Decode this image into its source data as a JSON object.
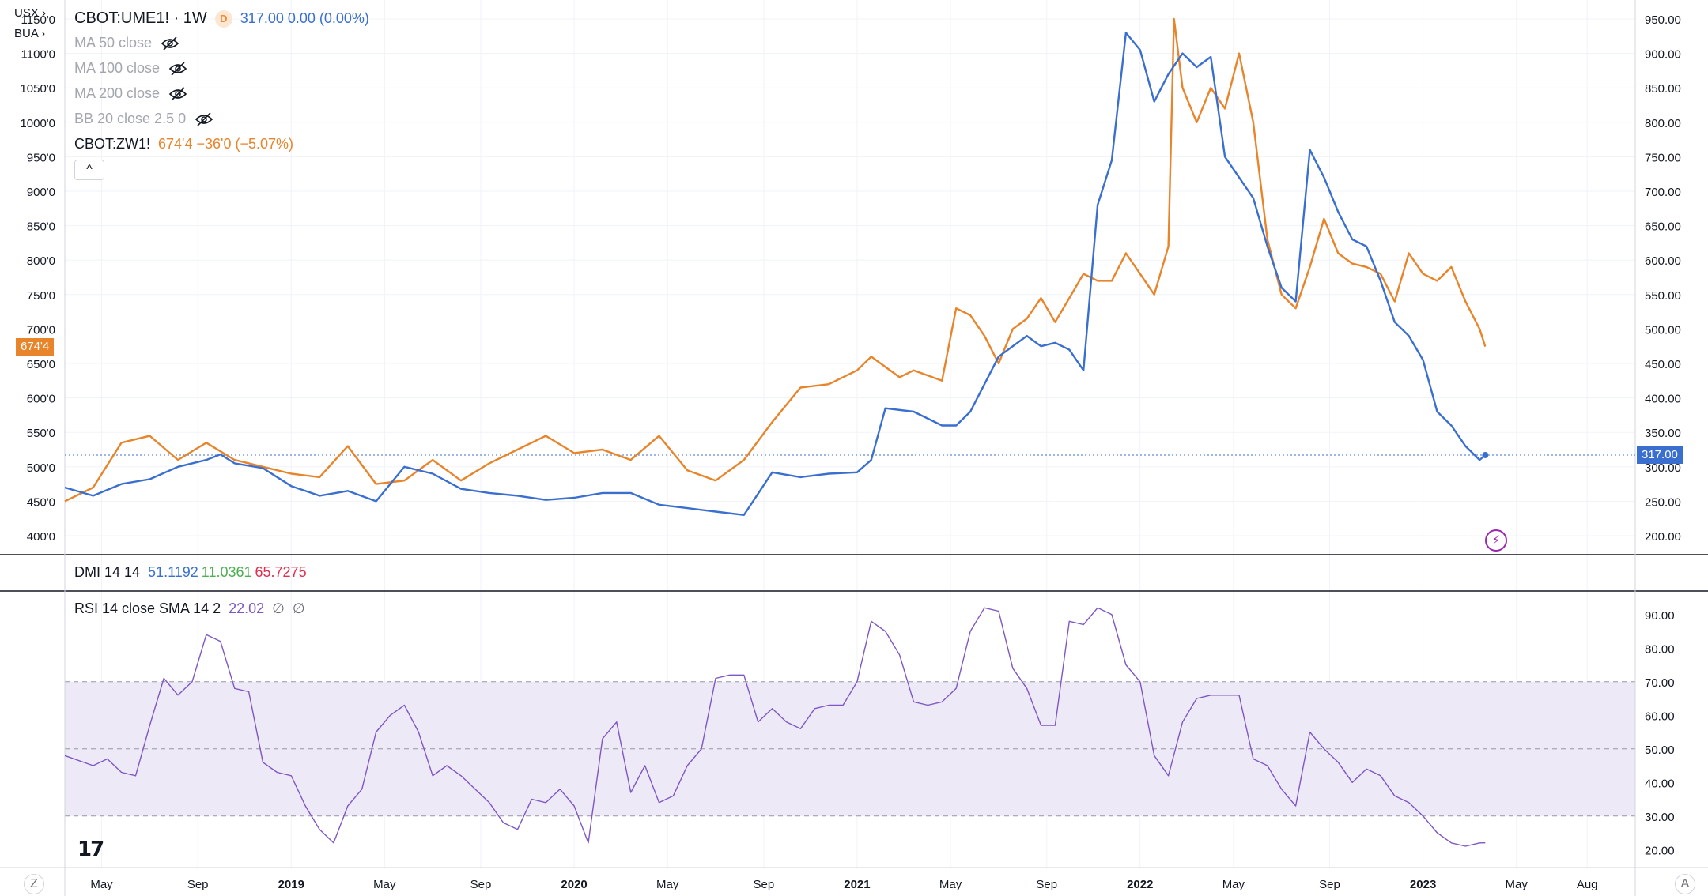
{
  "legend": {
    "main_symbol": "CBOT:UME1! · 1W",
    "main_badge": "D",
    "main_values": "317.00  0.00 (0.00%)",
    "indicators": [
      {
        "label": "MA 50 close"
      },
      {
        "label": "MA 100 close"
      },
      {
        "label": "MA 200 close"
      },
      {
        "label": "BB 20 close 2.5 0"
      }
    ],
    "compare_symbol": "CBOT:ZW1!",
    "compare_values": "674'4  −36'0 (−5.07%)",
    "collapse_icon": "^"
  },
  "left_scale_buttons": {
    "top": "USX",
    "second": "BUA"
  },
  "dmi": {
    "label": "DMI 14 14",
    "v1": "51.1192",
    "v2": "11.0361",
    "v3": "65.7275"
  },
  "rsi": {
    "label": "RSI 14 close SMA 14 2",
    "value": "22.02",
    "sym1": "∅",
    "sym2": "∅"
  },
  "price_tags": {
    "right": "317.00",
    "left": "674'4"
  },
  "bottom": {
    "z": "Z",
    "a": "A",
    "logo": "17"
  },
  "colors": {
    "ume": "#3a6fd0",
    "zw": "#e8842a",
    "rsi": "#7e57c2",
    "rsi_band": "#ede9f7",
    "dmi_blue": "#3a6fd0",
    "dmi_green": "#4caf50",
    "dmi_red": "#e0304e"
  },
  "chart_data": [
    {
      "type": "line",
      "title": "CBOT:UME1! vs CBOT:ZW1! weekly",
      "x_ticks": [
        "May",
        "Sep",
        "2019",
        "May",
        "Sep",
        "2020",
        "May",
        "Sep",
        "2021",
        "May",
        "Sep",
        "2022",
        "May",
        "Sep",
        "2023",
        "May",
        "Aug"
      ],
      "x_range": [
        2018.2,
        2023.75
      ],
      "right_axis": {
        "ticks": [
          "950.00",
          "900.00",
          "850.00",
          "800.00",
          "750.00",
          "700.00",
          "650.00",
          "600.00",
          "550.00",
          "500.00",
          "450.00",
          "400.00",
          "350.00",
          "300.00",
          "250.00",
          "200.00"
        ],
        "ylim": [
          200,
          950
        ]
      },
      "left_axis": {
        "ticks": [
          "1150'0",
          "1100'0",
          "1050'0",
          "1000'0",
          "950'0",
          "900'0",
          "850'0",
          "800'0",
          "750'0",
          "700'0",
          "650'0",
          "600'0",
          "550'0",
          "500'0",
          "450'0",
          "400'0"
        ],
        "ylim": [
          400,
          1150
        ]
      },
      "series": [
        {
          "name": "CBOT:UME1!",
          "axis": "right",
          "x": [
            2018.2,
            2018.3,
            2018.4,
            2018.5,
            2018.6,
            2018.7,
            2018.75,
            2018.8,
            2018.9,
            2019.0,
            2019.1,
            2019.2,
            2019.3,
            2019.4,
            2019.5,
            2019.6,
            2019.7,
            2019.8,
            2019.9,
            2020.0,
            2020.1,
            2020.2,
            2020.3,
            2020.4,
            2020.5,
            2020.6,
            2020.7,
            2020.8,
            2020.9,
            2021.0,
            2021.05,
            2021.1,
            2021.2,
            2021.3,
            2021.35,
            2021.4,
            2021.5,
            2021.6,
            2021.65,
            2021.7,
            2021.75,
            2021.8,
            2021.85,
            2021.9,
            2021.95,
            2022.0,
            2022.05,
            2022.1,
            2022.15,
            2022.2,
            2022.25,
            2022.3,
            2022.35,
            2022.4,
            2022.45,
            2022.5,
            2022.55,
            2022.6,
            2022.65,
            2022.7,
            2022.75,
            2022.8,
            2022.85,
            2022.9,
            2022.95,
            2023.0,
            2023.05,
            2023.1,
            2023.15,
            2023.2,
            2023.22
          ],
          "values": [
            270,
            258,
            275,
            282,
            300,
            310,
            318,
            305,
            298,
            272,
            258,
            265,
            250,
            300,
            290,
            268,
            262,
            258,
            252,
            255,
            262,
            262,
            245,
            240,
            235,
            230,
            292,
            285,
            290,
            292,
            310,
            385,
            380,
            360,
            360,
            380,
            460,
            490,
            475,
            480,
            470,
            440,
            680,
            745,
            930,
            905,
            830,
            870,
            900,
            880,
            895,
            750,
            720,
            690,
            620,
            560,
            540,
            760,
            720,
            670,
            630,
            620,
            570,
            510,
            490,
            455,
            380,
            360,
            330,
            310,
            317
          ]
        },
        {
          "name": "CBOT:ZW1!",
          "axis": "left",
          "x": [
            2018.2,
            2018.3,
            2018.4,
            2018.5,
            2018.6,
            2018.7,
            2018.8,
            2018.9,
            2019.0,
            2019.1,
            2019.2,
            2019.3,
            2019.4,
            2019.5,
            2019.6,
            2019.7,
            2019.8,
            2019.9,
            2020.0,
            2020.1,
            2020.2,
            2020.3,
            2020.4,
            2020.5,
            2020.6,
            2020.7,
            2020.8,
            2020.9,
            2021.0,
            2021.05,
            2021.1,
            2021.15,
            2021.2,
            2021.3,
            2021.35,
            2021.4,
            2021.45,
            2021.5,
            2021.55,
            2021.6,
            2021.65,
            2021.7,
            2021.75,
            2021.8,
            2021.85,
            2021.9,
            2021.95,
            2022.0,
            2022.05,
            2022.1,
            2022.12,
            2022.15,
            2022.2,
            2022.25,
            2022.3,
            2022.35,
            2022.4,
            2022.45,
            2022.5,
            2022.55,
            2022.6,
            2022.65,
            2022.7,
            2022.75,
            2022.8,
            2022.85,
            2022.9,
            2022.95,
            2023.0,
            2023.05,
            2023.1,
            2023.15,
            2023.2,
            2023.22
          ],
          "values": [
            450,
            470,
            535,
            545,
            510,
            535,
            510,
            500,
            490,
            485,
            530,
            475,
            480,
            510,
            480,
            505,
            525,
            545,
            520,
            525,
            510,
            545,
            495,
            480,
            510,
            565,
            615,
            620,
            640,
            660,
            645,
            630,
            640,
            625,
            730,
            720,
            690,
            650,
            700,
            715,
            745,
            710,
            745,
            780,
            770,
            770,
            810,
            780,
            750,
            820,
            1150,
            1050,
            1000,
            1050,
            1020,
            1100,
            1000,
            830,
            750,
            730,
            790,
            860,
            810,
            795,
            790,
            780,
            740,
            810,
            780,
            770,
            790,
            740,
            700,
            674.5
          ]
        }
      ]
    },
    {
      "type": "line",
      "title": "RSI 14 close SMA 14 2",
      "y_ticks": [
        "90.00",
        "80.00",
        "70.00",
        "60.00",
        "50.00",
        "40.00",
        "30.00",
        "20.00"
      ],
      "ylim": [
        17,
        93
      ],
      "bands": {
        "upper": 70,
        "middle": 50,
        "lower": 30
      },
      "series": [
        {
          "name": "RSI",
          "x": [
            2018.2,
            2018.3,
            2018.35,
            2018.4,
            2018.45,
            2018.5,
            2018.55,
            2018.6,
            2018.65,
            2018.7,
            2018.75,
            2018.8,
            2018.85,
            2018.9,
            2018.95,
            2019.0,
            2019.05,
            2019.1,
            2019.15,
            2019.2,
            2019.25,
            2019.3,
            2019.35,
            2019.4,
            2019.45,
            2019.5,
            2019.55,
            2019.6,
            2019.65,
            2019.7,
            2019.75,
            2019.8,
            2019.85,
            2019.9,
            2019.95,
            2020.0,
            2020.05,
            2020.1,
            2020.15,
            2020.2,
            2020.25,
            2020.3,
            2020.35,
            2020.4,
            2020.45,
            2020.5,
            2020.55,
            2020.6,
            2020.65,
            2020.7,
            2020.75,
            2020.8,
            2020.85,
            2020.9,
            2020.95,
            2021.0,
            2021.05,
            2021.1,
            2021.15,
            2021.2,
            2021.25,
            2021.3,
            2021.35,
            2021.4,
            2021.45,
            2021.5,
            2021.55,
            2021.6,
            2021.65,
            2021.7,
            2021.75,
            2021.8,
            2021.85,
            2021.9,
            2021.95,
            2022.0,
            2022.05,
            2022.1,
            2022.15,
            2022.2,
            2022.25,
            2022.3,
            2022.35,
            2022.4,
            2022.45,
            2022.5,
            2022.55,
            2022.6,
            2022.65,
            2022.7,
            2022.75,
            2022.8,
            2022.85,
            2022.9,
            2022.95,
            2023.0,
            2023.05,
            2023.1,
            2023.15,
            2023.2,
            2023.22
          ],
          "values": [
            48,
            45,
            47,
            43,
            42,
            57,
            71,
            66,
            70,
            84,
            82,
            68,
            67,
            46,
            43,
            42,
            33,
            26,
            22,
            33,
            38,
            55,
            60,
            63,
            55,
            42,
            45,
            42,
            38,
            34,
            28,
            26,
            35,
            34,
            38,
            33,
            22,
            53,
            58,
            37,
            45,
            34,
            36,
            45,
            50,
            71,
            72,
            72,
            58,
            62,
            58,
            56,
            62,
            63,
            63,
            70,
            88,
            85,
            78,
            64,
            63,
            64,
            68,
            85,
            92,
            91,
            74,
            68,
            57,
            57,
            88,
            87,
            92,
            90,
            75,
            70,
            48,
            42,
            58,
            65,
            66,
            66,
            66,
            47,
            45,
            38,
            33,
            55,
            50,
            46,
            40,
            44,
            42,
            36,
            34,
            30,
            25,
            22,
            21,
            22,
            22.02
          ]
        }
      ]
    }
  ]
}
